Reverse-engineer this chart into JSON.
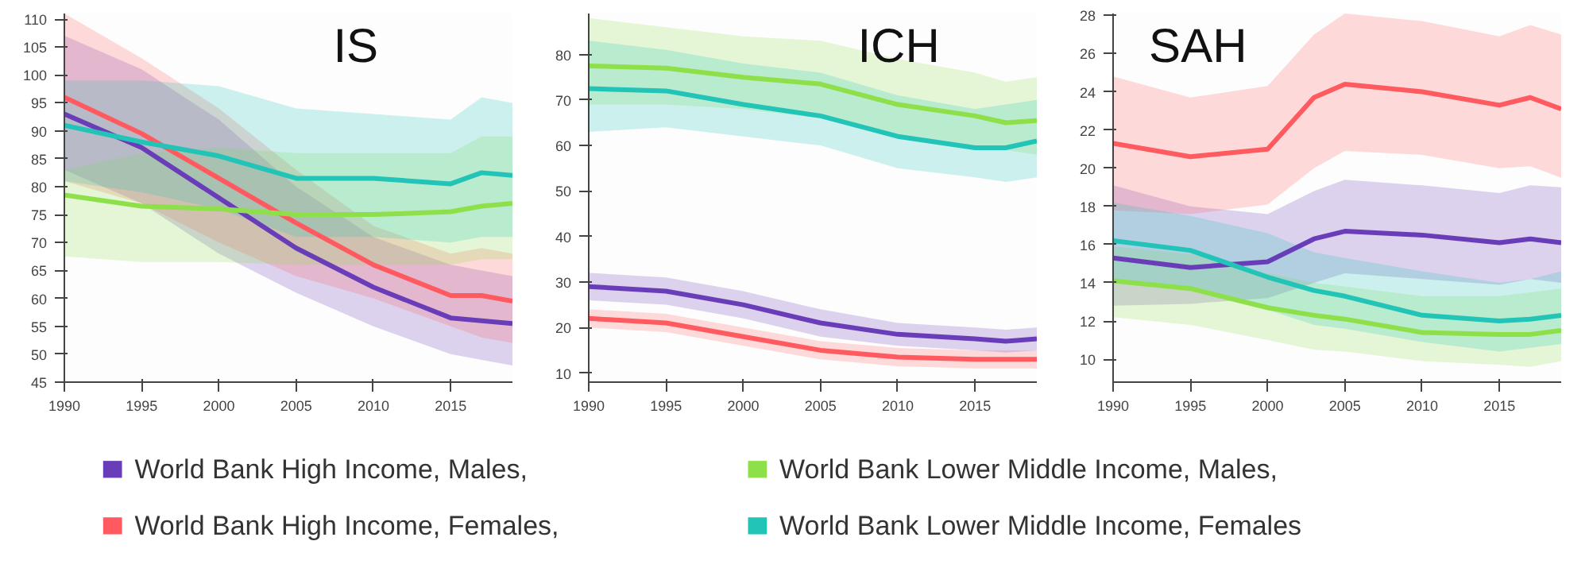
{
  "chart_data": [
    {
      "type": "line",
      "title": "IS",
      "x": [
        1990,
        1995,
        2000,
        2005,
        2010,
        2015,
        2017,
        2019
      ],
      "xlim": [
        1990,
        2019
      ],
      "xticks": [
        1990,
        1995,
        2000,
        2005,
        2010,
        2015
      ],
      "ylim": [
        45,
        111
      ],
      "yticks": [
        45,
        50,
        55,
        60,
        65,
        70,
        75,
        80,
        85,
        90,
        95,
        100,
        105,
        110
      ],
      "grid": false,
      "legend": "bottom",
      "line_style": "solid",
      "marker": "none",
      "series": [
        {
          "name": "World Bank High Income, Males,",
          "color": "#6a3db8",
          "values": [
            93,
            87,
            78,
            69,
            62,
            56.5,
            56,
            55.5
          ],
          "lower": [
            83,
            77,
            68,
            61,
            55,
            50,
            49,
            48
          ],
          "upper": [
            107,
            101,
            92,
            80,
            71,
            66,
            65,
            64
          ]
        },
        {
          "name": "World Bank High Income, Females,",
          "color": "#ff5a5f",
          "values": [
            96,
            89.5,
            81.5,
            73.5,
            66,
            60.5,
            60.5,
            59.5
          ],
          "lower": [
            81,
            77,
            70,
            64,
            60,
            55,
            53,
            52
          ],
          "upper": [
            111,
            103,
            94,
            83,
            73,
            68,
            69,
            68
          ]
        },
        {
          "name": "World Bank Lower Middle Income, Males,",
          "color": "#8ee04a",
          "values": [
            78.5,
            76.5,
            76,
            75,
            75,
            75.5,
            76.5,
            77
          ],
          "lower": [
            67.5,
            66.5,
            66.5,
            66,
            66,
            66,
            67,
            67
          ],
          "upper": [
            83,
            86,
            87,
            86,
            86,
            86,
            89,
            89
          ]
        },
        {
          "name": "World Bank Lower Middle Income, Females",
          "color": "#22c4b8",
          "values": [
            91,
            88,
            85.5,
            81.5,
            81.5,
            80.5,
            82.5,
            82
          ],
          "lower": [
            81,
            79,
            76,
            71,
            71,
            70,
            71,
            71
          ],
          "upper": [
            99,
            99,
            98,
            94,
            93,
            92,
            96,
            95
          ]
        }
      ]
    },
    {
      "type": "line",
      "title": "ICH",
      "x": [
        1990,
        1995,
        2000,
        2005,
        2010,
        2015,
        2017,
        2019
      ],
      "xlim": [
        1990,
        2019
      ],
      "xticks": [
        1990,
        1995,
        2000,
        2005,
        2010,
        2015
      ],
      "ylim": [
        8,
        89
      ],
      "yticks": [
        10,
        20,
        30,
        40,
        50,
        60,
        70,
        80
      ],
      "grid": false,
      "line_style": "solid",
      "marker": "none",
      "series": [
        {
          "color": "#6a3db8",
          "values": [
            29,
            28,
            25,
            21,
            18.5,
            17.5,
            17,
            17.5
          ],
          "lower": [
            26,
            25,
            22,
            18,
            16,
            15,
            14.5,
            15
          ],
          "upper": [
            32,
            31,
            28,
            24,
            21,
            20,
            19.5,
            20
          ]
        },
        {
          "color": "#ff5a5f",
          "values": [
            22,
            21,
            18,
            15,
            13.5,
            13,
            13,
            13
          ],
          "lower": [
            20,
            19,
            16,
            13,
            11.5,
            11,
            11,
            11
          ],
          "upper": [
            24,
            23,
            20,
            17,
            15.5,
            15,
            15,
            15
          ]
        },
        {
          "color": "#8ee04a",
          "values": [
            77.5,
            77,
            75,
            73.5,
            69,
            66.5,
            65,
            65.5
          ],
          "lower": [
            69,
            69,
            68,
            66,
            62,
            60,
            59,
            58
          ],
          "upper": [
            88,
            86,
            84,
            83,
            79,
            76,
            74,
            75
          ]
        },
        {
          "color": "#22c4b8",
          "values": [
            72.5,
            72,
            69,
            66.5,
            62,
            59.5,
            59.5,
            61
          ],
          "lower": [
            63,
            64,
            62,
            60,
            55,
            53,
            52,
            53
          ],
          "upper": [
            83,
            81,
            78,
            76,
            71,
            68,
            69,
            70
          ]
        }
      ]
    },
    {
      "type": "line",
      "title": "SAH",
      "x": [
        1990,
        1995,
        2000,
        2003,
        2005,
        2010,
        2015,
        2017,
        2019
      ],
      "xlim": [
        1990,
        2019
      ],
      "xticks": [
        1990,
        1995,
        2000,
        2005,
        2010,
        2015
      ],
      "ylim": [
        8.8,
        28.1
      ],
      "yticks": [
        10,
        12,
        14,
        16,
        18,
        20,
        22,
        24,
        26,
        28
      ],
      "grid": false,
      "line_style": "solid",
      "marker": "none",
      "series": [
        {
          "color": "#6a3db8",
          "values": [
            15.3,
            14.8,
            15.1,
            16.3,
            16.7,
            16.5,
            16.1,
            16.3,
            16.1
          ],
          "lower": [
            12.8,
            12.9,
            13.2,
            14,
            14.5,
            14.2,
            13.9,
            14.2,
            14
          ],
          "upper": [
            19.1,
            18,
            17.6,
            18.8,
            19.4,
            19.1,
            18.7,
            19.1,
            19
          ]
        },
        {
          "color": "#ff5a5f",
          "values": [
            21.3,
            20.6,
            21,
            23.7,
            24.4,
            24,
            23.3,
            23.7,
            23.1
          ],
          "lower": [
            17.8,
            17.6,
            18.1,
            20,
            20.9,
            20.7,
            20,
            20.1,
            19.5
          ],
          "upper": [
            24.8,
            23.7,
            24.3,
            27,
            28.1,
            27.7,
            26.9,
            27.5,
            27
          ]
        },
        {
          "color": "#8ee04a",
          "values": [
            14.1,
            13.7,
            12.7,
            12.3,
            12.1,
            11.4,
            11.3,
            11.3,
            11.5
          ],
          "lower": [
            12.2,
            11.8,
            11,
            10.5,
            10.4,
            9.9,
            9.7,
            9.6,
            9.9
          ],
          "upper": [
            15.9,
            15.5,
            14.5,
            14,
            13.8,
            13.3,
            13.3,
            13.5,
            13.7
          ]
        },
        {
          "color": "#22c4b8",
          "values": [
            16.2,
            15.7,
            14.3,
            13.6,
            13.3,
            12.3,
            12,
            12.1,
            12.3
          ],
          "lower": [
            14.2,
            13.8,
            12.6,
            11.8,
            11.6,
            10.9,
            10.4,
            10.6,
            10.8
          ],
          "upper": [
            18.2,
            17.5,
            16.6,
            15.6,
            15.3,
            14.6,
            14,
            14.2,
            14.6
          ]
        }
      ]
    }
  ]
}
